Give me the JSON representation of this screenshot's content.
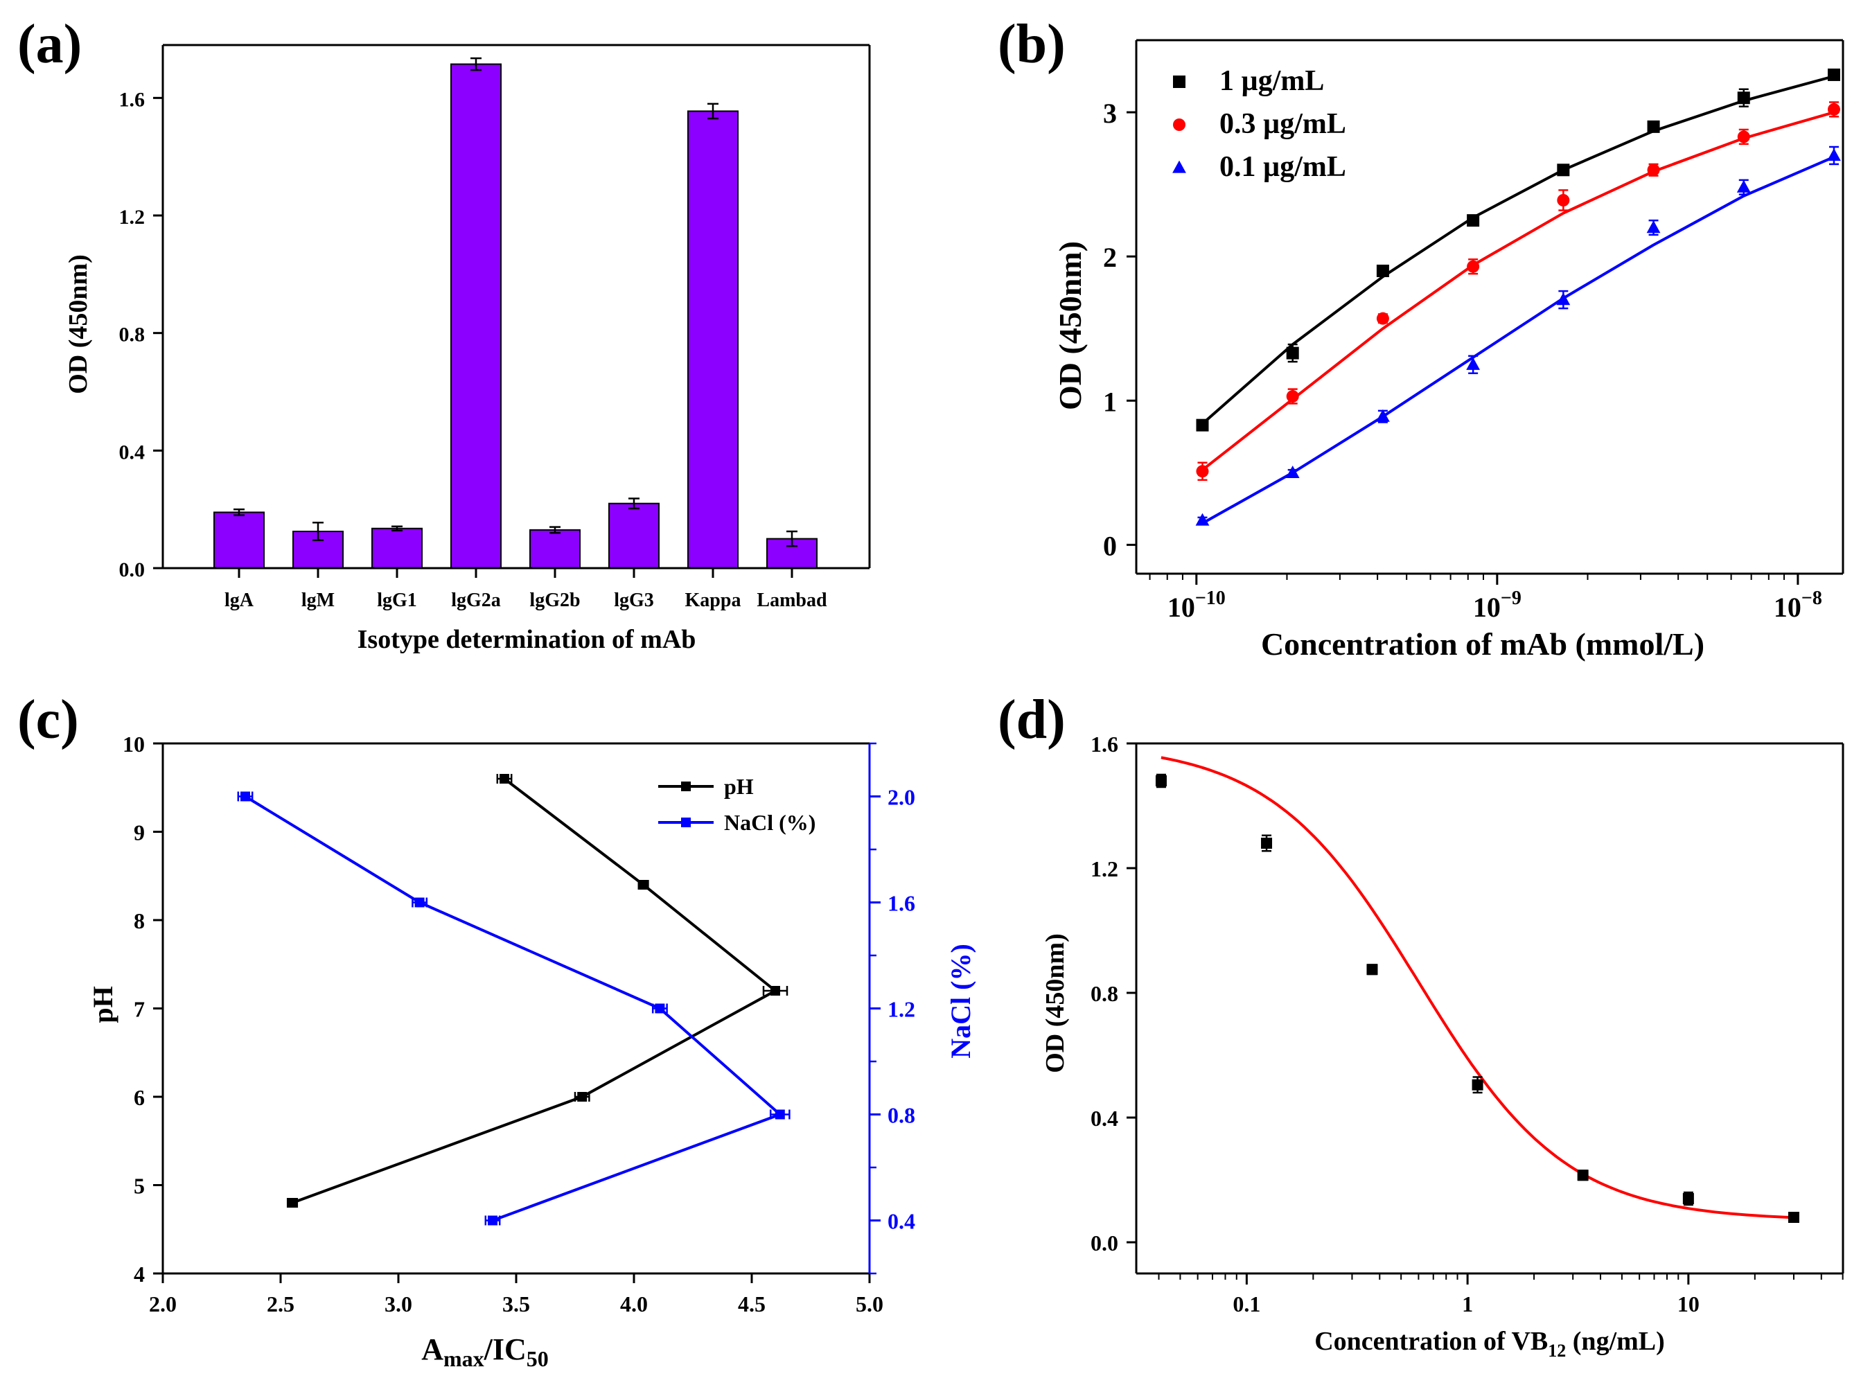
{
  "chart_data": [
    {
      "id": "a",
      "panel_label": "(a)",
      "type": "bar",
      "xlabel": "Isotype determination of mAb",
      "ylabel": "OD (450nm)",
      "ylim": [
        0,
        1.78
      ],
      "yticks": [
        0.0,
        0.4,
        0.8,
        1.2,
        1.6
      ],
      "ytick_labels": [
        "0.0",
        "0.4",
        "0.8",
        "1.2",
        "1.6"
      ],
      "categories": [
        "lgA",
        "lgM",
        "lgG1",
        "lgG2a",
        "lgG2b",
        "lgG3",
        "Kappa",
        "Lambad"
      ],
      "values": [
        0.19,
        0.125,
        0.135,
        1.715,
        0.13,
        0.22,
        1.555,
        0.1
      ],
      "errors": [
        0.01,
        0.03,
        0.007,
        0.02,
        0.01,
        0.017,
        0.025,
        0.025
      ],
      "color": "#8B00FF"
    },
    {
      "id": "b",
      "panel_label": "(b)",
      "type": "scatter",
      "xscale": "log",
      "xlabel": "Concentration of mAb (mmol/L)",
      "ylabel": "OD (450nm)",
      "xlim_log10": [
        -10.2,
        -7.85
      ],
      "ylim": [
        -0.2,
        3.5
      ],
      "yticks": [
        0,
        1,
        2,
        3
      ],
      "ytick_labels": [
        "0",
        "1",
        "2",
        "3"
      ],
      "xticks_log10": [
        -10,
        -9,
        -8
      ],
      "xtick_base": "10",
      "xtick_exponents": [
        "−10",
        "−9",
        "−8"
      ],
      "legend_position": "top-left",
      "series": [
        {
          "name": "1 µg/mL",
          "color": "#000000",
          "marker": "square",
          "x_log10": [
            -9.98,
            -9.68,
            -9.38,
            -9.08,
            -8.78,
            -8.48,
            -8.18,
            -7.88
          ],
          "y": [
            0.83,
            1.33,
            1.9,
            2.25,
            2.6,
            2.9,
            3.1,
            3.26
          ],
          "err": [
            0.02,
            0.06,
            0.03,
            0.03,
            0.03,
            0.03,
            0.06,
            0.03
          ],
          "fit": [
            0.84,
            1.39,
            1.86,
            2.27,
            2.6,
            2.87,
            3.08,
            3.25
          ]
        },
        {
          "name": "0.3 µg/mL",
          "color": "#FF0000",
          "marker": "circle",
          "x_log10": [
            -9.98,
            -9.68,
            -9.38,
            -9.08,
            -8.78,
            -8.48,
            -8.18,
            -7.88
          ],
          "y": [
            0.51,
            1.03,
            1.57,
            1.93,
            2.39,
            2.6,
            2.83,
            3.02
          ],
          "err": [
            0.06,
            0.05,
            0.03,
            0.05,
            0.07,
            0.04,
            0.05,
            0.05
          ],
          "fit": [
            0.52,
            1.01,
            1.5,
            1.94,
            2.3,
            2.59,
            2.82,
            3.0
          ]
        },
        {
          "name": "0.1 µg/mL",
          "color": "#0000FF",
          "marker": "triangle",
          "x_log10": [
            -9.98,
            -9.68,
            -9.38,
            -9.08,
            -8.78,
            -8.48,
            -8.18,
            -7.88
          ],
          "y": [
            0.17,
            0.5,
            0.89,
            1.25,
            1.7,
            2.2,
            2.48,
            2.7
          ],
          "err": [
            0.02,
            0.02,
            0.04,
            0.06,
            0.06,
            0.05,
            0.05,
            0.06
          ],
          "fit": [
            0.15,
            0.5,
            0.89,
            1.3,
            1.71,
            2.08,
            2.42,
            2.69
          ]
        }
      ]
    },
    {
      "id": "c",
      "panel_label": "(c)",
      "type": "line",
      "xlabel_main": "A",
      "xlabel_sub1": "max",
      "xlabel_mid": "/IC",
      "xlabel_sub2": "50",
      "ylabel_left": "pH",
      "ylabel_right": "NaCl (%)",
      "xlim": [
        2.0,
        5.0
      ],
      "xticks": [
        2.0,
        2.5,
        3.0,
        3.5,
        4.0,
        4.5,
        5.0
      ],
      "xtick_labels": [
        "2.0",
        "2.5",
        "3.0",
        "3.5",
        "4.0",
        "4.5",
        "5.0"
      ],
      "ylim_left": [
        4,
        10
      ],
      "yticks_left": [
        4,
        5,
        6,
        7,
        8,
        9,
        10
      ],
      "ytick_labels_left": [
        "4",
        "5",
        "6",
        "7",
        "8",
        "9",
        "10"
      ],
      "ylim_right": [
        0.2,
        2.2
      ],
      "yticks_right": [
        0.4,
        0.8,
        1.2,
        1.6,
        2.0
      ],
      "ytick_labels_right": [
        "0.4",
        "0.8",
        "1.2",
        "1.6",
        "2.0"
      ],
      "right_axis_color": "#0000FF",
      "legend_position": "top-right",
      "series": [
        {
          "name": "pH",
          "color": "#000000",
          "axis": "left",
          "x": [
            2.55,
            3.78,
            4.6,
            4.04,
            3.45
          ],
          "y": [
            4.8,
            6.0,
            7.2,
            8.4,
            9.6
          ],
          "xerr": [
            0.02,
            0.03,
            0.05,
            0.02,
            0.03
          ]
        },
        {
          "name": "NaCl (%)",
          "color": "#0000FF",
          "axis": "right",
          "x": [
            3.4,
            4.62,
            4.11,
            3.09,
            2.35
          ],
          "y": [
            0.4,
            0.8,
            1.2,
            1.6,
            2.0
          ],
          "xerr": [
            0.03,
            0.04,
            0.03,
            0.03,
            0.03
          ]
        }
      ]
    },
    {
      "id": "d",
      "panel_label": "(d)",
      "type": "scatter",
      "xscale": "log",
      "xlabel_main": "Concentration of VB",
      "xlabel_sub": "12",
      "xlabel_tail": " (ng/mL)",
      "ylabel": "OD (450nm)",
      "xlim_log10": [
        -1.5,
        1.7
      ],
      "ylim": [
        -0.1,
        1.6
      ],
      "xticks_log10": [
        -1,
        0,
        1
      ],
      "xtick_labels": [
        "0.1",
        "1",
        "10"
      ],
      "yticks": [
        0.0,
        0.4,
        0.8,
        1.2,
        1.6
      ],
      "ytick_labels": [
        "0.0",
        "0.4",
        "0.8",
        "1.2",
        "1.6"
      ],
      "points_x": [
        0.041,
        0.123,
        0.37,
        1.11,
        3.33,
        10,
        30
      ],
      "points_y": [
        1.48,
        1.28,
        0.875,
        0.505,
        0.215,
        0.14,
        0.08
      ],
      "points_err": [
        0.02,
        0.025,
        0.015,
        0.025,
        0.015,
        0.02,
        0.01
      ],
      "fit_model": {
        "type": "4PL",
        "top": 1.6,
        "bottom": 0.07,
        "ic50": 0.6,
        "hill": 1.3
      },
      "point_color": "#000000",
      "fit_color": "#FF0000"
    }
  ]
}
